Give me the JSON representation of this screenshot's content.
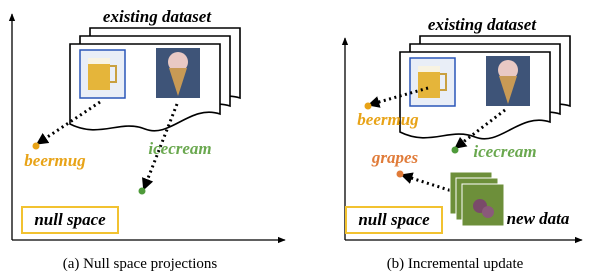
{
  "panels": [
    {
      "title": "existing dataset",
      "points": [
        {
          "label": "beermug"
        },
        {
          "label": "icecream"
        }
      ],
      "null_space": "null space",
      "caption": "(a) Null space projections"
    },
    {
      "title": "existing dataset",
      "points": [
        {
          "label": "beermug"
        },
        {
          "label": "icecream"
        },
        {
          "label": "grapes"
        }
      ],
      "null_space": "null space",
      "new_data": "new data",
      "caption": "(b) Incremental update"
    }
  ]
}
